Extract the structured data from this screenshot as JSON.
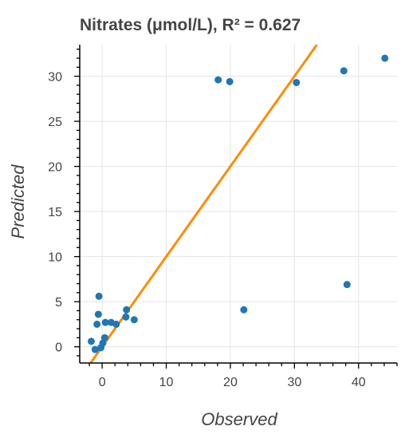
{
  "chart_data": {
    "type": "scatter",
    "title": "Nitrates (μmol/L), R² = 0.627",
    "xlabel": "Observed",
    "ylabel": "Predicted",
    "xlim": [
      -3.5,
      46
    ],
    "ylim": [
      -1.8,
      33.5
    ],
    "x_ticks": [
      0,
      10,
      20,
      30,
      40
    ],
    "y_ticks": [
      0,
      5,
      10,
      15,
      20,
      25,
      30
    ],
    "grid": true,
    "colors": {
      "points": "#1f77b4",
      "fit_line": "#ff8c00",
      "grid": "#e5e5e5"
    },
    "series": [
      {
        "x": [
          18.1,
          19.9,
          30.3,
          37.7,
          44.1,
          38.2,
          22.1,
          -0.5,
          -0.6,
          -0.8,
          -1.7,
          -1.1,
          -0.2,
          0.1,
          0.4,
          0.5,
          1.4,
          2.2,
          3.8,
          3.7,
          5.0
        ],
        "y": [
          29.6,
          29.4,
          29.3,
          30.6,
          32.0,
          6.9,
          4.1,
          5.6,
          3.6,
          2.5,
          0.6,
          -0.3,
          -0.1,
          0.4,
          1.0,
          2.7,
          2.7,
          2.5,
          4.1,
          3.3,
          3.0
        ]
      }
    ],
    "fit_line": {
      "x": [
        -1.8,
        33.5
      ],
      "y": [
        -1.8,
        33.5
      ]
    }
  }
}
